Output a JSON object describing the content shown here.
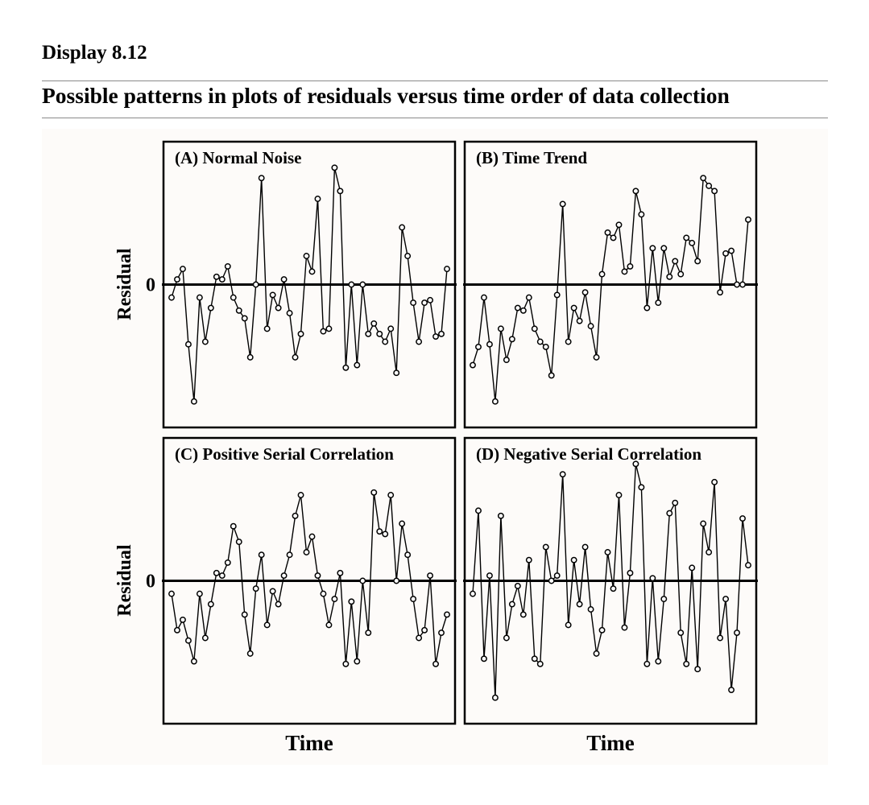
{
  "display_label": "Display 8.12",
  "heading": "Possible patterns in plots of residuals versus time order of data collection",
  "chart_data": [
    {
      "type": "line",
      "title": "(A) Normal Noise",
      "xlabel": "Time",
      "ylabel": "Residual",
      "y_tick_label": "0",
      "ylim": [
        -5.5,
        5.5
      ],
      "grid": false,
      "series": [
        {
          "values": [
            -0.5,
            0.2,
            0.6,
            -2.3,
            -4.5,
            -0.5,
            -2.2,
            -0.9,
            0.3,
            0.2,
            0.7,
            -0.5,
            -1.0,
            -1.3,
            -2.8,
            0.0,
            4.1,
            -1.7,
            -0.4,
            -0.9,
            0.2,
            -1.1,
            -2.8,
            -1.9,
            1.1,
            0.5,
            3.3,
            -1.8,
            -1.7,
            4.5,
            3.6,
            -3.2,
            0.0,
            -3.1,
            0.0,
            -1.9,
            -1.5,
            -1.9,
            -2.2,
            -1.7,
            -3.4,
            2.2,
            1.1,
            -0.7,
            -2.2,
            -0.7,
            -0.6,
            -2.0,
            -1.9,
            0.6
          ]
        }
      ]
    },
    {
      "type": "line",
      "title": "(B) Time Trend",
      "xlabel": "Time",
      "ylabel": "",
      "ylim": [
        -5.5,
        5.5
      ],
      "grid": false,
      "series": [
        {
          "values": [
            -3.1,
            -2.4,
            -0.5,
            -2.3,
            -4.5,
            -1.7,
            -2.9,
            -2.1,
            -0.9,
            -1.0,
            -0.5,
            -1.7,
            -2.2,
            -2.4,
            -3.5,
            -0.4,
            3.1,
            -2.2,
            -0.9,
            -1.4,
            -0.3,
            -1.6,
            -2.8,
            0.4,
            2.0,
            1.8,
            2.3,
            0.5,
            0.7,
            3.6,
            2.7,
            -0.9,
            1.4,
            -0.7,
            1.4,
            0.3,
            0.9,
            0.4,
            1.8,
            1.6,
            0.9,
            4.1,
            3.8,
            3.6,
            -0.3,
            1.2,
            1.3,
            0.0,
            0.0,
            2.5
          ]
        }
      ]
    },
    {
      "type": "line",
      "title": "(C) Positive Serial Correlation",
      "xlabel": "Time",
      "ylabel": "Residual",
      "y_tick_label": "0",
      "ylim": [
        -5.5,
        5.5
      ],
      "grid": false,
      "series": [
        {
          "values": [
            -0.5,
            -1.9,
            -1.5,
            -2.3,
            -3.1,
            -0.5,
            -2.2,
            -0.9,
            0.3,
            0.2,
            0.7,
            2.1,
            1.5,
            -1.3,
            -2.8,
            -0.3,
            1.0,
            -1.7,
            -0.4,
            -0.9,
            0.2,
            1.0,
            2.5,
            3.3,
            1.1,
            1.7,
            0.2,
            -0.5,
            -1.7,
            -0.7,
            0.3,
            -3.2,
            -0.8,
            -3.1,
            0.0,
            -2.0,
            3.4,
            1.9,
            1.8,
            3.3,
            0.0,
            2.2,
            1.0,
            -0.7,
            -2.2,
            -1.9,
            0.2,
            -3.2,
            -2.0,
            -1.3
          ]
        }
      ]
    },
    {
      "type": "line",
      "title": "(D) Negative Serial Correlation",
      "xlabel": "Time",
      "ylabel": "",
      "ylim": [
        -5.5,
        5.5
      ],
      "grid": false,
      "series": [
        {
          "values": [
            -0.5,
            2.7,
            -3.0,
            0.2,
            -4.5,
            2.5,
            -2.2,
            -0.9,
            -0.2,
            -1.3,
            0.8,
            -3.0,
            -3.2,
            1.3,
            0.0,
            0.2,
            4.1,
            -1.7,
            0.8,
            -0.9,
            1.3,
            -1.1,
            -2.8,
            -1.9,
            1.1,
            -0.3,
            3.3,
            -1.8,
            0.3,
            4.5,
            3.6,
            -3.2,
            0.1,
            -3.1,
            -0.7,
            2.6,
            3.0,
            -2.0,
            -3.2,
            0.5,
            -3.4,
            2.2,
            1.1,
            3.8,
            -2.2,
            -0.7,
            -4.2,
            -2.0,
            2.4,
            0.6
          ]
        }
      ]
    }
  ]
}
